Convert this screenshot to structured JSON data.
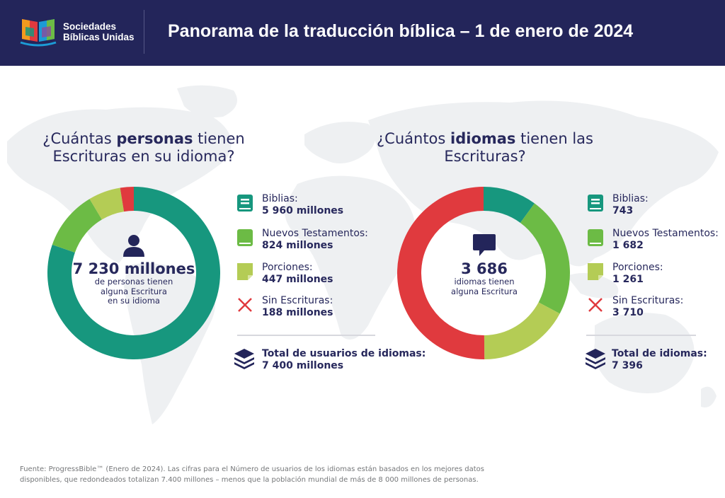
{
  "header": {
    "logo_line1": "Sociedades",
    "logo_line2": "Bíblicas Unidas",
    "title": "Panorama de la traducción bíblica – 1 de enero de 2024"
  },
  "colors": {
    "navy": "#23255a",
    "teal": "#17977e",
    "green": "#6cbb45",
    "lightgreen": "#b4cc55",
    "red": "#e03a3e",
    "map": "#eef0f2"
  },
  "people": {
    "question_pre": "¿Cuántas ",
    "question_bold": "personas",
    "question_post": " tienen Escrituras en su idioma?",
    "center_icon": "person-icon",
    "center_big": "7 230 millones",
    "center_sub1": "de personas tienen",
    "center_sub2": "alguna Escritura",
    "center_sub3": "en su idioma",
    "legend": [
      {
        "icon": "bible-icon",
        "label": "Biblias:",
        "value": "5 960 millones"
      },
      {
        "icon": "new-testament-icon",
        "label": "Nuevos Testamentos:",
        "value": "824 millones"
      },
      {
        "icon": "portion-icon",
        "label": "Porciones:",
        "value": "447 millones"
      },
      {
        "icon": "x-icon",
        "label": "Sin Escrituras:",
        "value": "188 millones"
      }
    ],
    "total_icon": "layers-icon",
    "total_label": "Total de usuarios de idiomas:",
    "total_value": "7 400 millones"
  },
  "languages": {
    "question_pre": "¿Cuántos ",
    "question_bold": "idiomas",
    "question_post": " tienen las Escrituras?",
    "center_icon": "speech-bubble-icon",
    "center_big": "3 686",
    "center_sub1": "idiomas tienen",
    "center_sub2": "alguna Escritura",
    "legend": [
      {
        "icon": "bible-icon",
        "label": "Biblias:",
        "value": "743"
      },
      {
        "icon": "new-testament-icon",
        "label": "Nuevos Testamentos:",
        "value": "1 682"
      },
      {
        "icon": "portion-icon",
        "label": "Porciones:",
        "value": "1 261"
      },
      {
        "icon": "x-icon",
        "label": "Sin Escrituras:",
        "value": "3 710"
      }
    ],
    "total_icon": "layers-icon",
    "total_label": "Total de idiomas:",
    "total_value": "7 396"
  },
  "chart_data": [
    {
      "type": "pie",
      "categories": [
        "Biblias",
        "Nuevos Testamentos",
        "Porciones",
        "Sin Escrituras"
      ],
      "values": [
        5960,
        824,
        447,
        188
      ],
      "colors": [
        "#17977e",
        "#6cbb45",
        "#b4cc55",
        "#e03a3e"
      ]
    },
    {
      "type": "pie",
      "categories": [
        "Biblias",
        "Nuevos Testamentos",
        "Porciones",
        "Sin Escrituras"
      ],
      "values": [
        743,
        1682,
        1261,
        3710
      ],
      "colors": [
        "#17977e",
        "#6cbb45",
        "#b4cc55",
        "#e03a3e"
      ]
    }
  ],
  "footnote": {
    "line1": "Fuente: ProgressBible™ (Enero de 2024). Las cifras para el Número de usuarios de los idiomas están basados en los mejores datos",
    "line2": "disponibles, que redondeados totalizan 7.400 millones – menos que la población mundial de más de 8 000 millones de personas."
  }
}
